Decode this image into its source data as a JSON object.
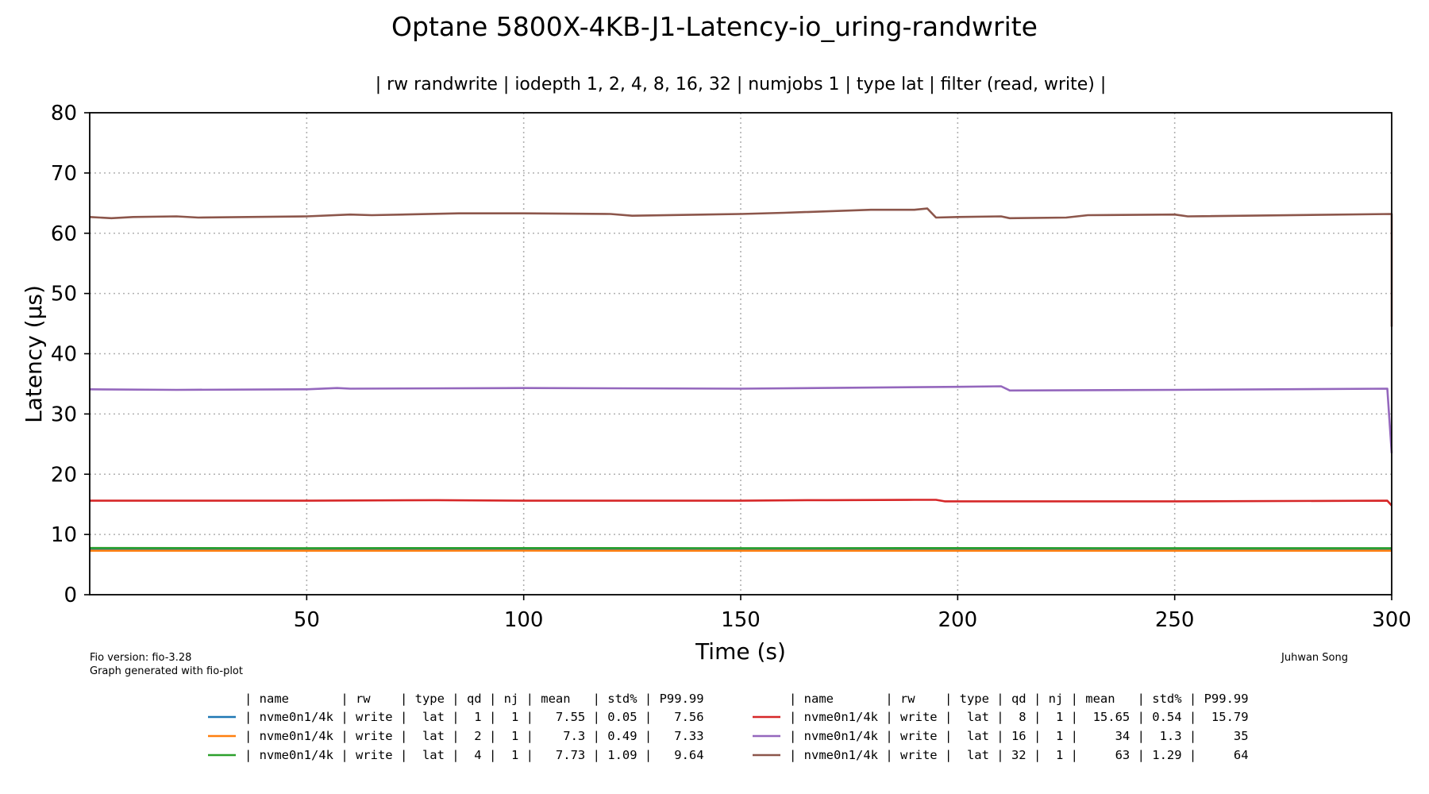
{
  "chart_data": {
    "type": "line",
    "title": "Optane 5800X-4KB-J1-Latency-io_uring-randwrite",
    "subtitle": "| rw randwrite | iodepth 1, 2, 4, 8, 16, 32 | numjobs 1 | type lat | filter (read, write) |",
    "xlabel": "Time (s)",
    "ylabel": "Latency (µs)",
    "xlim": [
      0,
      300
    ],
    "ylim": [
      0,
      80
    ],
    "xticks": [
      50,
      100,
      150,
      200,
      250,
      300
    ],
    "yticks": [
      0,
      10,
      20,
      30,
      40,
      50,
      60,
      70,
      80
    ],
    "grid": true,
    "series": [
      {
        "color": "#1f77b4",
        "x": [
          0,
          50,
          100,
          150,
          200,
          250,
          300
        ],
        "y": [
          7.55,
          7.55,
          7.56,
          7.55,
          7.55,
          7.55,
          7.55
        ]
      },
      {
        "color": "#ff7f0e",
        "x": [
          0,
          50,
          100,
          150,
          200,
          250,
          300
        ],
        "y": [
          7.3,
          7.3,
          7.32,
          7.3,
          7.3,
          7.3,
          7.3
        ]
      },
      {
        "color": "#2ca02c",
        "x": [
          0,
          50,
          100,
          150,
          200,
          250,
          300
        ],
        "y": [
          7.75,
          7.72,
          7.74,
          7.72,
          7.73,
          7.72,
          7.72
        ]
      },
      {
        "color": "#d62728",
        "x": [
          0,
          50,
          80,
          100,
          150,
          166,
          170,
          190,
          195,
          197,
          250,
          299,
          300
        ],
        "y": [
          15.6,
          15.6,
          15.7,
          15.6,
          15.6,
          15.7,
          15.7,
          15.75,
          15.75,
          15.5,
          15.5,
          15.6,
          14.8
        ]
      },
      {
        "color": "#9467bd",
        "x": [
          0,
          20,
          50,
          57,
          60,
          100,
          150,
          200,
          210,
          212,
          250,
          299,
          300
        ],
        "y": [
          34.1,
          34.0,
          34.1,
          34.3,
          34.2,
          34.3,
          34.2,
          34.5,
          34.6,
          33.9,
          34.0,
          34.2,
          23.5
        ]
      },
      {
        "color": "#8c564b",
        "x": [
          0,
          5,
          10,
          20,
          25,
          50,
          60,
          65,
          85,
          100,
          120,
          125,
          150,
          160,
          180,
          190,
          193,
          195,
          200,
          210,
          212,
          225,
          230,
          250,
          253,
          300,
          300
        ],
        "y": [
          62.7,
          62.5,
          62.7,
          62.8,
          62.6,
          62.8,
          63.1,
          63.0,
          63.3,
          63.3,
          63.2,
          62.9,
          63.2,
          63.4,
          63.9,
          63.9,
          64.1,
          62.6,
          62.7,
          62.8,
          62.5,
          62.6,
          63.0,
          63.1,
          62.8,
          63.2,
          44.5
        ]
      }
    ],
    "legend": {
      "placement": "bottom",
      "header": "| name       | rw    | type | qd | nj | mean   | std% | P99.99",
      "rows": [
        {
          "color": "#1f77b4",
          "text": "| nvme0n1/4k | write |  lat |  1 |  1 |   7.55 | 0.05 |   7.56"
        },
        {
          "color": "#ff7f0e",
          "text": "| nvme0n1/4k | write |  lat |  2 |  1 |    7.3 | 0.49 |   7.33"
        },
        {
          "color": "#2ca02c",
          "text": "| nvme0n1/4k | write |  lat |  4 |  1 |   7.73 | 1.09 |   9.64"
        },
        {
          "color": "#d62728",
          "text": "| nvme0n1/4k | write |  lat |  8 |  1 |  15.65 | 0.54 |  15.79"
        },
        {
          "color": "#9467bd",
          "text": "| nvme0n1/4k | write |  lat | 16 |  1 |     34 |  1.3 |     35"
        },
        {
          "color": "#8c564b",
          "text": "| nvme0n1/4k | write |  lat | 32 |  1 |     63 | 1.29 |     64"
        }
      ]
    },
    "annotations": {
      "fio_version": "Fio version: fio-3.28",
      "generated": "Graph generated with fio-plot",
      "author": "Juhwan Song"
    }
  }
}
